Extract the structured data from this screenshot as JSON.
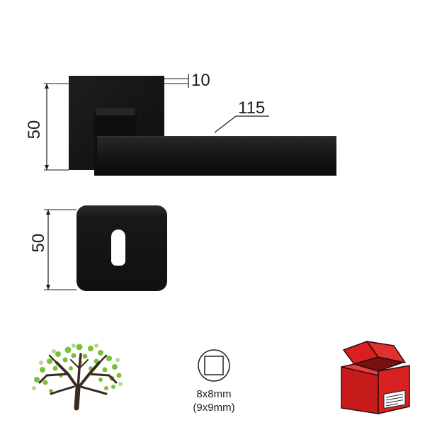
{
  "dimensions": {
    "rose_thickness": "10",
    "lever_length": "115",
    "rose_height": "50",
    "escutcheon_height": "50"
  },
  "spindle": {
    "size": "8x8mm",
    "alt_size": "(9x9mm)"
  },
  "colors": {
    "product": "#151515",
    "dimension_line": "#1a1a1a",
    "box_red": "#d92020",
    "tree_trunk": "#3a2a20",
    "tree_leaves": "#7dbf3c"
  },
  "icons": {
    "eco": "tree-icon",
    "spindle": "square-spindle-icon",
    "packaging": "gift-box-icon"
  }
}
